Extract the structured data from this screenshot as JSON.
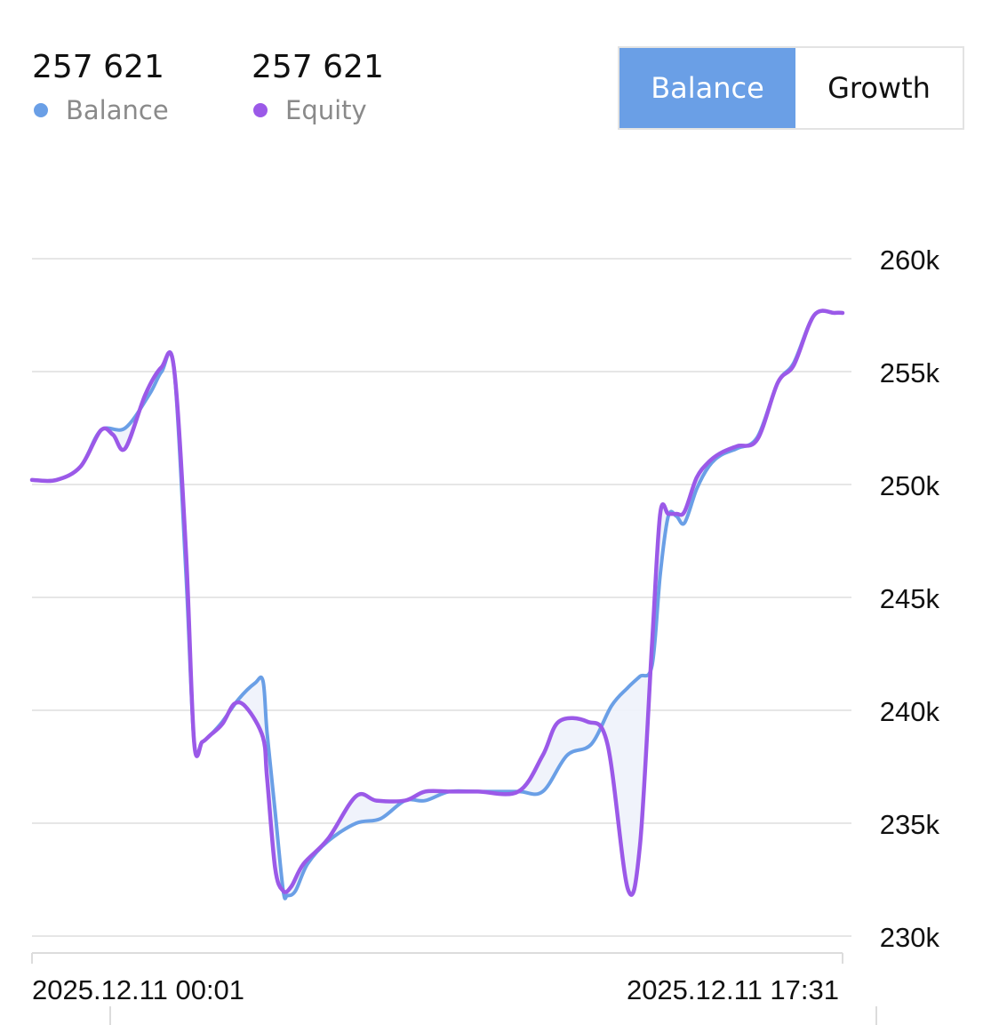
{
  "stats": {
    "balance": {
      "value": "257 621",
      "label": "Balance",
      "color": "#6a9fe6"
    },
    "equity": {
      "value": "257 621",
      "label": "Equity",
      "color": "#9b59e8"
    }
  },
  "toggle": {
    "balance_label": "Balance",
    "growth_label": "Growth",
    "active": "Balance"
  },
  "colors": {
    "balance": "#6a9fe6",
    "equity": "#9b59e8",
    "fill": "#eef2fb",
    "grid": "#e6e6e6",
    "axis": "#dcdcdc"
  },
  "chart_data": {
    "type": "line",
    "ylim": [
      230000,
      260000
    ],
    "yticks": [
      {
        "value": 260000,
        "label": "260k"
      },
      {
        "value": 255000,
        "label": "255k"
      },
      {
        "value": 250000,
        "label": "250k"
      },
      {
        "value": 245000,
        "label": "245k"
      },
      {
        "value": 240000,
        "label": "240k"
      },
      {
        "value": 235000,
        "label": "235k"
      },
      {
        "value": 230000,
        "label": "230k"
      }
    ],
    "xlabels": [
      "2025.12.11 00:01",
      "2025.12.11 17:31"
    ],
    "xlim": [
      0,
      100
    ],
    "grid": true,
    "series": [
      {
        "name": "Balance",
        "color": "#6a9fe6",
        "x": [
          0,
          3,
          6,
          8.5,
          11.5,
          14.5,
          16,
          17.5,
          19,
          20,
          21,
          22,
          23.5,
          25.5,
          27.5,
          28.5,
          29,
          30,
          31,
          31.5,
          32.5,
          34,
          36.5,
          40,
          43,
          46,
          48.5,
          51.5,
          55,
          60,
          63,
          66,
          69,
          71.5,
          73.5,
          75,
          76.5,
          77.5,
          78.5,
          79.5,
          80.5,
          82,
          83.5,
          85,
          87,
          89.5,
          92,
          94,
          96.5,
          99,
          100
        ],
        "y": [
          250200,
          250200,
          250800,
          252400,
          252500,
          254000,
          255000,
          255200,
          246000,
          238600,
          238600,
          238900,
          239500,
          240500,
          241200,
          241300,
          239000,
          235500,
          232000,
          231800,
          232000,
          233200,
          234200,
          235000,
          235200,
          236000,
          236000,
          236400,
          236400,
          236400,
          236400,
          238000,
          238500,
          240200,
          241000,
          241500,
          242000,
          246000,
          248600,
          248600,
          248300,
          249800,
          250800,
          251300,
          251600,
          252100,
          254500,
          255400,
          257500,
          257600,
          257600
        ]
      },
      {
        "name": "Equity",
        "color": "#9b59e8",
        "x": [
          0,
          3,
          6,
          8.5,
          10,
          11.5,
          14,
          16,
          17.5,
          19,
          20,
          21,
          22,
          23.5,
          25,
          26.5,
          28.5,
          29,
          30,
          31,
          32,
          33.5,
          36.5,
          40,
          42.5,
          46,
          48.5,
          51.5,
          55,
          60,
          63,
          65,
          68.5,
          71,
          73.5,
          75,
          76.5,
          77.5,
          78.5,
          79.5,
          80.5,
          82,
          83.5,
          85,
          87,
          89.5,
          92,
          94,
          96.5,
          99,
          100
        ],
        "y": [
          250200,
          250200,
          250800,
          252400,
          252200,
          251600,
          254000,
          255200,
          255200,
          247000,
          238600,
          238600,
          238900,
          239400,
          240300,
          240100,
          238800,
          237000,
          233000,
          232000,
          232200,
          233200,
          234300,
          236200,
          236000,
          236000,
          236400,
          236400,
          236400,
          236400,
          238000,
          239500,
          239500,
          238500,
          232100,
          234000,
          243000,
          248700,
          248700,
          248700,
          248800,
          250300,
          251000,
          251400,
          251700,
          252000,
          254500,
          255300,
          257500,
          257600,
          257600
        ]
      }
    ]
  }
}
